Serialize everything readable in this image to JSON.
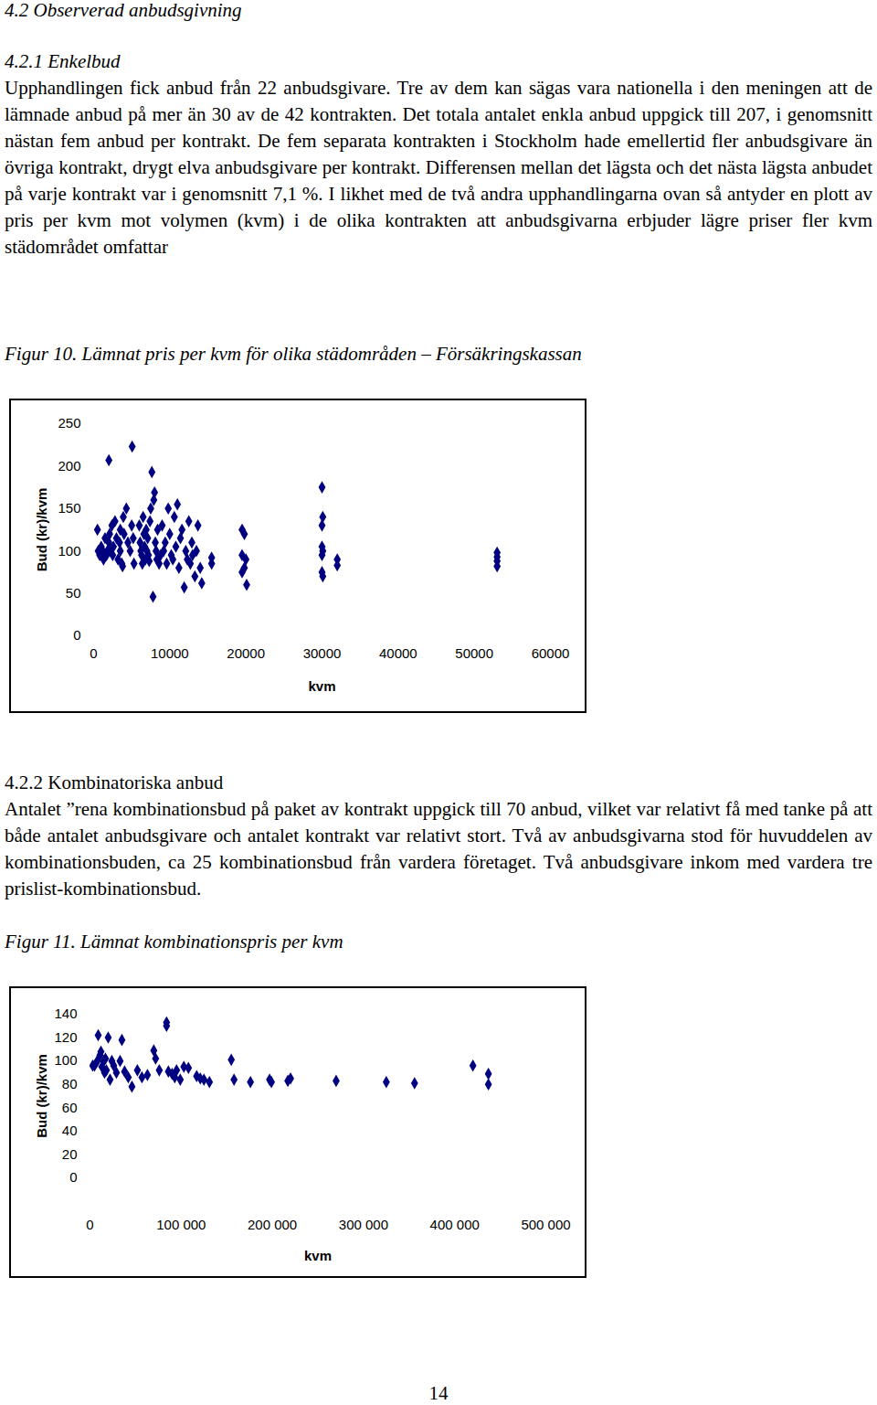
{
  "page": {
    "heading": "4.2 Observerad anbudsgivning",
    "subheading1": "4.2.1 Enkelbud",
    "paragraph1": "Upphandlingen fick anbud från 22 anbudsgivare. Tre av dem kan sägas vara nationella i den meningen att de lämnade anbud på mer än 30 av de 42 kontrakten. Det totala antalet enkla anbud uppgick till 207, i genomsnitt nästan fem anbud per kontrakt. De fem separata kontrakten i Stockholm hade emellertid fler anbudsgivare än övriga kontrakt, drygt elva anbudsgivare per kontrakt. Differensen mellan det lägsta och det nästa lägsta anbudet på varje kontrakt var i genomsnitt 7,1 %. I likhet med de två andra upphandlingarna ovan så antyder en plott av pris per kvm mot volymen (kvm) i de olika kontrakten att anbudsgivarna erbjuder lägre priser fler kvm städområdet omfattar",
    "figure1_caption": "Figur 10. Lämnat pris per kvm för olika städområden – Försäkringskassan",
    "subheading2": "4.2.2 Kombinatoriska anbud",
    "paragraph2": "Antalet ”rena kombinationsbud på paket av kontrakt uppgick till 70 anbud, vilket var relativt få med tanke på att både antalet anbudsgivare och antalet kontrakt var relativt stort. Två av anbudsgivarna stod för huvuddelen av kombinationsbuden, ca 25 kombinationsbud från vardera företaget. Två anbudsgivare inkom med vardera tre prislist-kombinationsbud.",
    "figure2_caption": "Figur 11. Lämnat kombinationspris per kvm",
    "page_number": "14"
  },
  "chart_data": [
    {
      "type": "scatter",
      "x_label": "kvm",
      "y_label": "Bud (kr)/kvm",
      "color": "#000080",
      "marker": "diamond",
      "x": [
        500,
        600,
        800,
        1000,
        1200,
        1300,
        1500,
        1700,
        1800,
        2000,
        2000,
        2100,
        2200,
        2400,
        2500,
        2600,
        2800,
        3000,
        3200,
        3400,
        3500,
        3500,
        3700,
        3800,
        3900,
        4000,
        4300,
        4500,
        4800,
        5060,
        5000,
        5200,
        5300,
        6000,
        6100,
        6200,
        6300,
        6400,
        6500,
        6600,
        6700,
        6800,
        6900,
        7000,
        7100,
        7200,
        7300,
        7400,
        7500,
        7650,
        7800,
        7900,
        8000,
        8100,
        8200,
        8300,
        8400,
        8600,
        8800,
        9000,
        9200,
        9400,
        9600,
        9800,
        10000,
        10200,
        10400,
        10600,
        10800,
        11000,
        11200,
        11400,
        11600,
        11900,
        12100,
        12300,
        12500,
        12700,
        12900,
        13000,
        13300,
        13500,
        13700,
        14000,
        14200,
        15500,
        15500,
        19500,
        19800,
        19500,
        20000,
        19800,
        19500,
        20100,
        30000,
        30100,
        30000,
        30000,
        30100,
        30000,
        30000,
        30100,
        32000,
        32000,
        53000,
        53000,
        53000,
        53000
      ],
      "values": [
        125,
        100,
        95,
        105,
        100,
        90,
        115,
        95,
        100,
        207,
        110,
        120,
        100,
        130,
        95,
        105,
        135,
        115,
        90,
        110,
        125,
        100,
        85,
        82,
        140,
        120,
        150,
        110,
        100,
        223,
        130,
        115,
        85,
        130,
        110,
        100,
        95,
        85,
        140,
        120,
        105,
        90,
        125,
        100,
        115,
        95,
        88,
        135,
        150,
        193,
        46,
        160,
        169,
        110,
        100,
        90,
        125,
        85,
        95,
        130,
        100,
        110,
        85,
        150,
        120,
        95,
        90,
        140,
        105,
        155,
        80,
        115,
        125,
        57,
        100,
        90,
        135,
        85,
        110,
        95,
        70,
        100,
        130,
        80,
        62,
        85,
        92,
        125,
        120,
        95,
        90,
        80,
        75,
        60,
        175,
        140,
        130,
        105,
        100,
        95,
        75,
        70,
        90,
        83,
        98,
        93,
        88,
        82
      ],
      "xlim": [
        0,
        60000
      ],
      "ylim": [
        0,
        250
      ],
      "xticks": [
        0,
        10000,
        20000,
        30000,
        40000,
        50000,
        60000
      ],
      "yticks": [
        0,
        50,
        100,
        150,
        200,
        250
      ],
      "grid": false
    },
    {
      "type": "scatter",
      "x_label": "kvm",
      "y_label": "Bud (kr)/kvm",
      "color": "#000080",
      "marker": "diamond",
      "x": [
        3000,
        5000,
        8000,
        9000,
        11000,
        12000,
        13000,
        15000,
        16000,
        17000,
        18000,
        20000,
        22000,
        24000,
        26000,
        29000,
        33000,
        35000,
        38000,
        42000,
        46000,
        52000,
        57000,
        63000,
        70000,
        72000,
        76000,
        84000,
        84000,
        86000,
        90000,
        93000,
        95000,
        99000,
        103000,
        108000,
        117000,
        121000,
        125000,
        131000,
        155000,
        158000,
        176000,
        197000,
        199000,
        217000,
        220000,
        270000,
        325000,
        356000,
        420000,
        437000,
        437000
      ],
      "values": [
        96,
        96,
        100,
        122,
        105,
        108,
        95,
        100,
        90,
        102,
        92,
        120,
        84,
        100,
        96,
        90,
        100,
        118,
        91,
        86,
        78,
        92,
        86,
        88,
        109,
        102,
        92,
        130,
        133,
        91,
        89,
        86,
        92,
        84,
        95,
        94,
        87,
        85,
        84,
        82,
        101,
        84,
        82,
        84,
        82,
        83,
        85,
        83,
        82,
        81,
        96,
        89,
        80
      ],
      "xlim": [
        0,
        500000
      ],
      "ylim": [
        0,
        140
      ],
      "xticks": [
        0,
        {
          "value": 100000,
          "label": "100 000"
        },
        {
          "value": 200000,
          "label": "200 000"
        },
        {
          "value": 300000,
          "label": "300 000"
        },
        {
          "value": 400000,
          "label": "400 000"
        },
        {
          "value": 500000,
          "label": "500 000"
        }
      ],
      "yticks": [
        0,
        20,
        40,
        60,
        80,
        100,
        120,
        140
      ],
      "grid": false
    }
  ]
}
